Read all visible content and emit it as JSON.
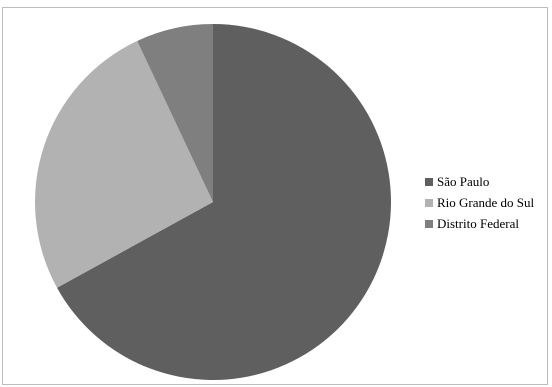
{
  "chart_data": {
    "type": "pie",
    "categories": [
      "São Paulo",
      "Rio Grande do Sul",
      "Distrito Federal"
    ],
    "values": [
      67,
      26,
      7
    ],
    "colors": [
      "#5f5f5f",
      "#b2b2b2",
      "#7f7f7f"
    ],
    "legend_position": "right",
    "start_angle_deg": 0
  }
}
